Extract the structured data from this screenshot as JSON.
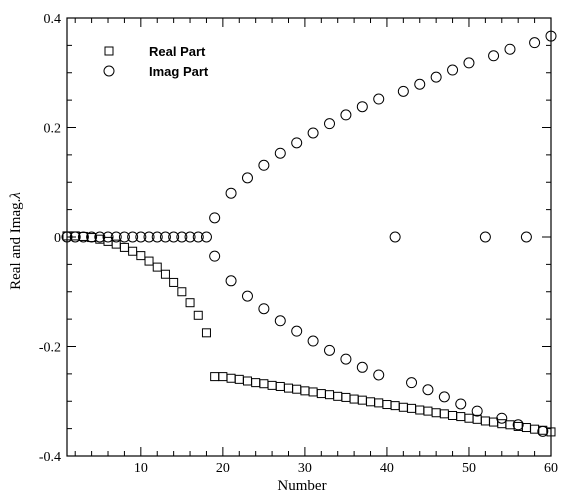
{
  "chart_data": {
    "type": "scatter",
    "title": "",
    "xlabel": "Number",
    "ylabel": "Real and Imag.",
    "ylabel_symbol": "λ",
    "xlim": [
      1,
      60
    ],
    "ylim": [
      -0.4,
      0.4
    ],
    "x_ticks": [
      10,
      20,
      30,
      40,
      50,
      60
    ],
    "x_tick_labels": [
      "10",
      "20",
      "30",
      "40",
      "50",
      "60"
    ],
    "y_ticks": [
      -0.4,
      -0.2,
      0,
      0.2,
      0.4
    ],
    "y_tick_labels": [
      "-0.4",
      "-0.2",
      "0",
      "0.2",
      "0.4"
    ],
    "grid": false,
    "legend_position": "top-left",
    "series": [
      {
        "name": "Real Part",
        "marker": "square",
        "points": [
          [
            1,
            0.002
          ],
          [
            2,
            0.002
          ],
          [
            3,
            0.001
          ],
          [
            4,
            -0.001
          ],
          [
            5,
            -0.004
          ],
          [
            6,
            -0.008
          ],
          [
            7,
            -0.013
          ],
          [
            8,
            -0.019
          ],
          [
            9,
            -0.026
          ],
          [
            10,
            -0.034
          ],
          [
            11,
            -0.044
          ],
          [
            12,
            -0.055
          ],
          [
            13,
            -0.068
          ],
          [
            14,
            -0.083
          ],
          [
            15,
            -0.1
          ],
          [
            16,
            -0.12
          ],
          [
            17,
            -0.143
          ],
          [
            18,
            -0.175
          ],
          [
            19,
            -0.255
          ],
          [
            20,
            -0.255
          ],
          [
            21,
            -0.258
          ],
          [
            22,
            -0.26
          ],
          [
            23,
            -0.263
          ],
          [
            24,
            -0.266
          ],
          [
            25,
            -0.268
          ],
          [
            26,
            -0.271
          ],
          [
            27,
            -0.273
          ],
          [
            28,
            -0.276
          ],
          [
            29,
            -0.278
          ],
          [
            30,
            -0.281
          ],
          [
            31,
            -0.283
          ],
          [
            32,
            -0.286
          ],
          [
            33,
            -0.288
          ],
          [
            34,
            -0.291
          ],
          [
            35,
            -0.293
          ],
          [
            36,
            -0.296
          ],
          [
            37,
            -0.298
          ],
          [
            38,
            -0.301
          ],
          [
            39,
            -0.303
          ],
          [
            40,
            -0.306
          ],
          [
            41,
            -0.308
          ],
          [
            42,
            -0.311
          ],
          [
            43,
            -0.313
          ],
          [
            44,
            -0.316
          ],
          [
            45,
            -0.318
          ],
          [
            46,
            -0.321
          ],
          [
            47,
            -0.323
          ],
          [
            48,
            -0.326
          ],
          [
            49,
            -0.328
          ],
          [
            50,
            -0.331
          ],
          [
            51,
            -0.333
          ],
          [
            52,
            -0.336
          ],
          [
            53,
            -0.338
          ],
          [
            54,
            -0.341
          ],
          [
            55,
            -0.343
          ],
          [
            56,
            -0.346
          ],
          [
            57,
            -0.348
          ],
          [
            58,
            -0.351
          ],
          [
            59,
            -0.353
          ],
          [
            60,
            -0.356
          ]
        ]
      },
      {
        "name": "Imag Part",
        "marker": "circle",
        "points": [
          [
            1,
            0
          ],
          [
            2,
            0
          ],
          [
            3,
            0
          ],
          [
            4,
            0
          ],
          [
            5,
            0
          ],
          [
            6,
            0
          ],
          [
            7,
            0
          ],
          [
            8,
            0
          ],
          [
            9,
            0
          ],
          [
            10,
            0
          ],
          [
            11,
            0
          ],
          [
            12,
            0
          ],
          [
            13,
            0
          ],
          [
            14,
            0
          ],
          [
            15,
            0
          ],
          [
            16,
            0
          ],
          [
            17,
            0
          ],
          [
            18,
            0
          ],
          [
            19,
            0.035
          ],
          [
            19,
            -0.035
          ],
          [
            21,
            0.08
          ],
          [
            21,
            -0.08
          ],
          [
            23,
            0.108
          ],
          [
            23,
            -0.108
          ],
          [
            25,
            0.131
          ],
          [
            25,
            -0.131
          ],
          [
            27,
            0.153
          ],
          [
            27,
            -0.153
          ],
          [
            29,
            0.172
          ],
          [
            29,
            -0.172
          ],
          [
            31,
            0.19
          ],
          [
            31,
            -0.19
          ],
          [
            33,
            0.207
          ],
          [
            33,
            -0.207
          ],
          [
            35,
            0.223
          ],
          [
            35,
            -0.223
          ],
          [
            37,
            0.238
          ],
          [
            37,
            -0.238
          ],
          [
            39,
            0.252
          ],
          [
            39,
            -0.252
          ],
          [
            41,
            0
          ],
          [
            42,
            0.266
          ],
          [
            43,
            -0.266
          ],
          [
            44,
            0.279
          ],
          [
            45,
            -0.279
          ],
          [
            46,
            0.292
          ],
          [
            47,
            -0.292
          ],
          [
            48,
            0.305
          ],
          [
            49,
            -0.305
          ],
          [
            50,
            0.318
          ],
          [
            51,
            -0.318
          ],
          [
            52,
            0
          ],
          [
            53,
            0.331
          ],
          [
            54,
            -0.331
          ],
          [
            55,
            0.343
          ],
          [
            56,
            -0.343
          ],
          [
            57,
            0
          ],
          [
            58,
            0.355
          ],
          [
            59,
            -0.355
          ],
          [
            60,
            0.367
          ]
        ]
      }
    ]
  }
}
